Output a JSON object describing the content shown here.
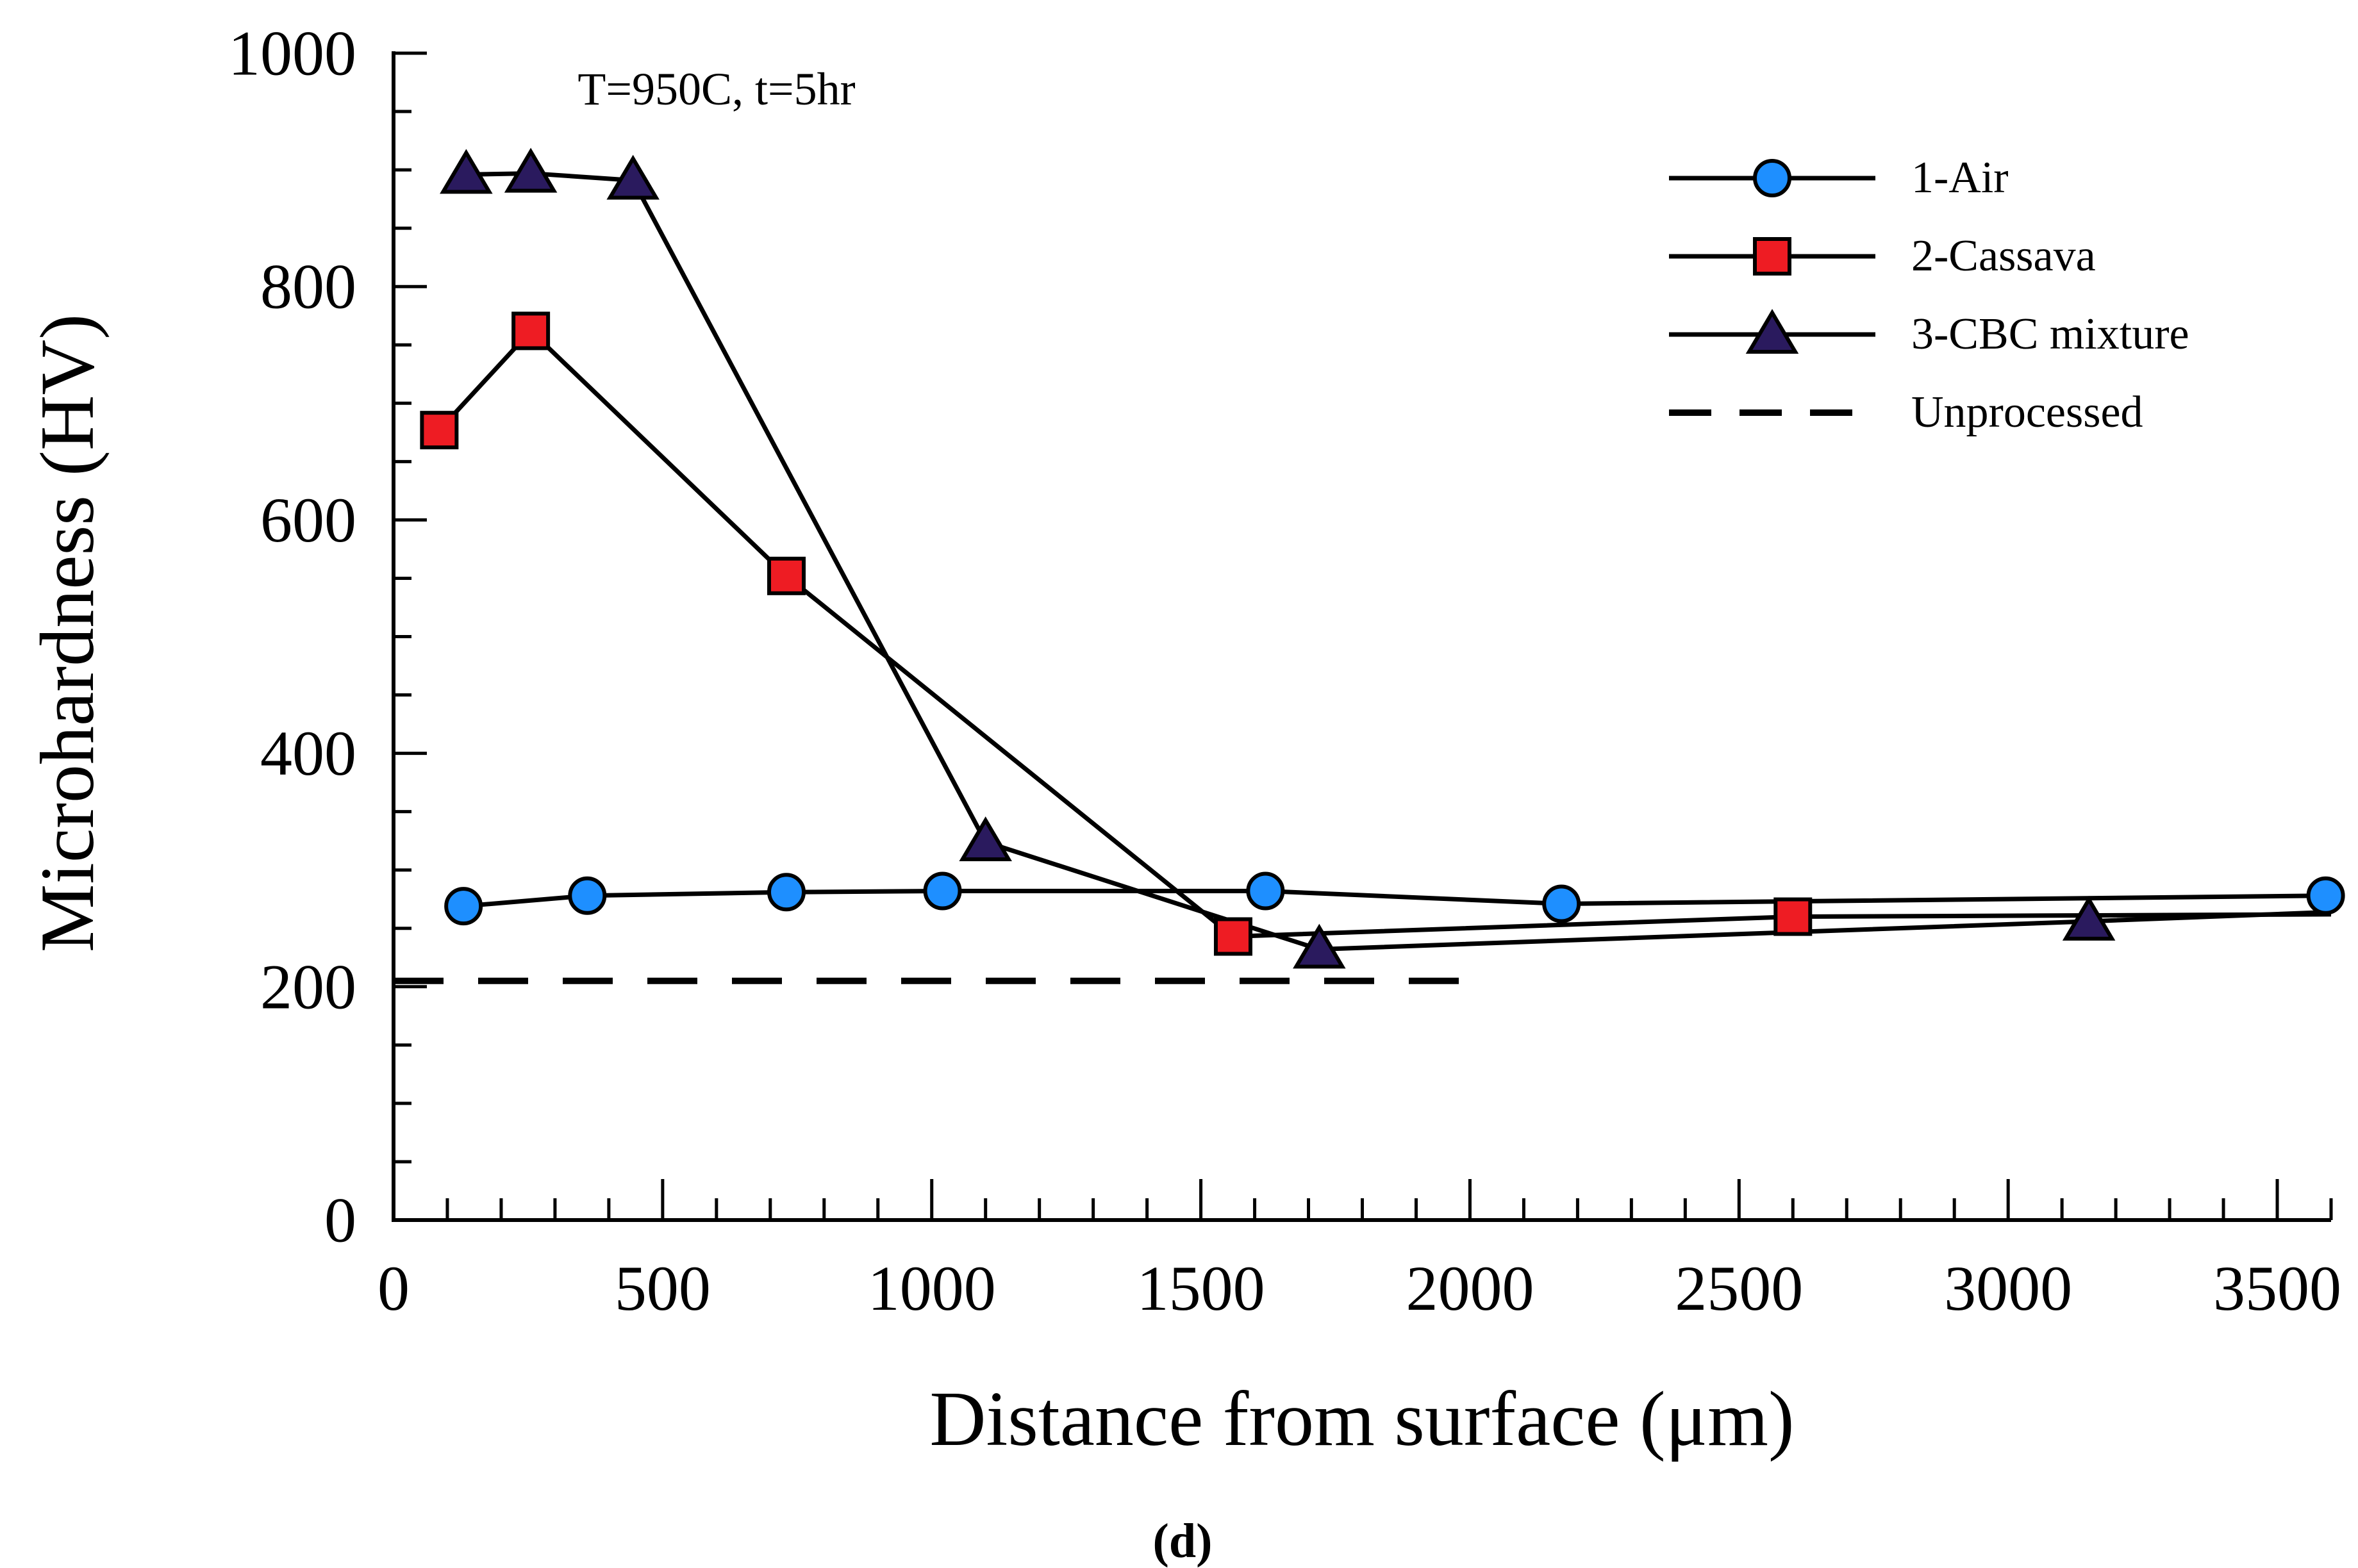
{
  "caption": "(d)",
  "chart_data": {
    "type": "line",
    "title": "",
    "annotation": "T=950C, t=5hr",
    "xlabel": "Distance from surface (μm)",
    "ylabel": "Microhardness (HV)",
    "xlim": [
      0,
      3600
    ],
    "ylim": [
      0,
      1000
    ],
    "x_major_ticks": [
      0,
      500,
      1000,
      1500,
      2000,
      2500,
      3000,
      3500
    ],
    "x_minor_step": 100,
    "y_major_ticks": [
      0,
      200,
      400,
      600,
      800,
      1000
    ],
    "y_minor_step": 50,
    "grid": false,
    "legend_position": "top-right",
    "series": [
      {
        "name": "1-Air",
        "marker": "circle",
        "marker_fill": "#1e8fff",
        "line_color": "#000000",
        "points": [
          [
            130,
            269
          ],
          [
            360,
            278
          ],
          [
            730,
            281
          ],
          [
            1020,
            282
          ],
          [
            1620,
            282
          ],
          [
            2170,
            271
          ],
          [
            3590,
            278
          ]
        ]
      },
      {
        "name": "2-Cassava",
        "marker": "square",
        "marker_fill": "#ee1c23",
        "line_color": "#000000",
        "points": [
          [
            85,
            677
          ],
          [
            255,
            762
          ],
          [
            730,
            552
          ],
          [
            1560,
            243
          ],
          [
            2600,
            260
          ]
        ],
        "tail": [
          3600,
          262
        ]
      },
      {
        "name": "3-CBC mixture",
        "marker": "triangle",
        "marker_fill": "#2a1a5e",
        "line_color": "#000000",
        "points": [
          [
            135,
            896
          ],
          [
            255,
            897
          ],
          [
            445,
            891
          ],
          [
            1100,
            324
          ],
          [
            1720,
            232
          ],
          [
            3150,
            256
          ]
        ],
        "tail": [
          3600,
          264
        ]
      }
    ],
    "reference_line": {
      "name": "Unprocessed",
      "style": "dashed",
      "color": "#000000",
      "y": 205,
      "x_start": 0,
      "x_end": 2000
    }
  },
  "legend": [
    {
      "label": "1-Air",
      "marker": "circle",
      "fill": "#1e8fff"
    },
    {
      "label": "2-Cassava",
      "marker": "square",
      "fill": "#ee1c23"
    },
    {
      "label": "3-CBC mixture",
      "marker": "triangle",
      "fill": "#2a1a5e"
    },
    {
      "label": "Unprocessed",
      "marker": "dash",
      "fill": "#000000"
    }
  ]
}
